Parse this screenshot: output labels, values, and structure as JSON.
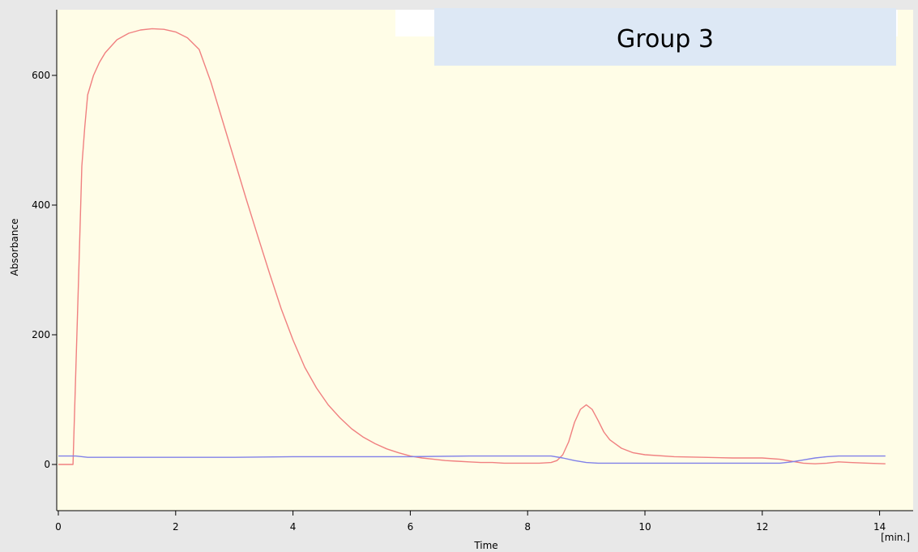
{
  "chart_data": {
    "type": "line",
    "title": "Group 3",
    "xlabel": "Time",
    "xunit": "[min.]",
    "ylabel": "Absorbance",
    "xlim": [
      0,
      14.4
    ],
    "ylim": [
      -70,
      700
    ],
    "xticks": [
      0,
      2,
      4,
      6,
      8,
      10,
      12,
      14
    ],
    "yticks": [
      0,
      200,
      400,
      600
    ],
    "grid": false,
    "colors": {
      "plot_background": "#fffde7",
      "frame_background": "#e8e8e8",
      "title_box": "#dde8f5",
      "red_series": "#f08080",
      "blue_series": "#8080e8"
    },
    "series": [
      {
        "color": "#f08080",
        "x": [
          0,
          0.25,
          0.3,
          0.35,
          0.4,
          0.45,
          0.5,
          0.6,
          0.7,
          0.8,
          1.0,
          1.2,
          1.4,
          1.6,
          1.8,
          2.0,
          2.2,
          2.4,
          2.6,
          2.8,
          3.0,
          3.2,
          3.4,
          3.6,
          3.8,
          4.0,
          4.2,
          4.4,
          4.6,
          4.8,
          5.0,
          5.2,
          5.4,
          5.6,
          5.8,
          6.0,
          6.2,
          6.4,
          6.6,
          6.8,
          7.0,
          7.2,
          7.4,
          7.6,
          7.8,
          8.0,
          8.2,
          8.4,
          8.5,
          8.6,
          8.7,
          8.8,
          8.9,
          9.0,
          9.1,
          9.2,
          9.3,
          9.4,
          9.6,
          9.8,
          10.0,
          10.5,
          11.0,
          11.5,
          12.0,
          12.3,
          12.5,
          12.7,
          12.9,
          13.1,
          13.3,
          13.5,
          13.8,
          14.1
        ],
        "y": [
          0,
          0,
          150,
          300,
          460,
          520,
          570,
          600,
          620,
          635,
          655,
          665,
          670,
          672,
          671,
          667,
          658,
          640,
          590,
          530,
          470,
          410,
          352,
          295,
          240,
          192,
          150,
          118,
          92,
          72,
          55,
          42,
          32,
          24,
          18,
          13,
          10,
          8,
          6,
          5,
          4,
          3,
          3,
          2,
          2,
          2,
          2,
          3,
          6,
          15,
          35,
          65,
          85,
          92,
          85,
          68,
          50,
          38,
          25,
          18,
          15,
          12,
          11,
          10,
          10,
          8,
          5,
          2,
          1,
          2,
          4,
          3,
          2,
          1
        ]
      },
      {
        "color": "#8080e8",
        "x": [
          0,
          0.3,
          0.5,
          1.0,
          2.0,
          3.0,
          4.0,
          5.0,
          6.0,
          7.0,
          8.0,
          8.4,
          8.6,
          8.8,
          9.0,
          9.2,
          10.0,
          11.0,
          12.0,
          12.3,
          12.5,
          12.7,
          12.9,
          13.1,
          13.3,
          13.6,
          14.1
        ],
        "y": [
          13,
          13,
          11,
          11,
          11,
          11,
          12,
          12,
          12,
          13,
          13,
          13,
          10,
          6,
          3,
          2,
          2,
          2,
          2,
          2,
          4,
          7,
          10,
          12,
          13,
          13,
          13
        ]
      }
    ]
  }
}
